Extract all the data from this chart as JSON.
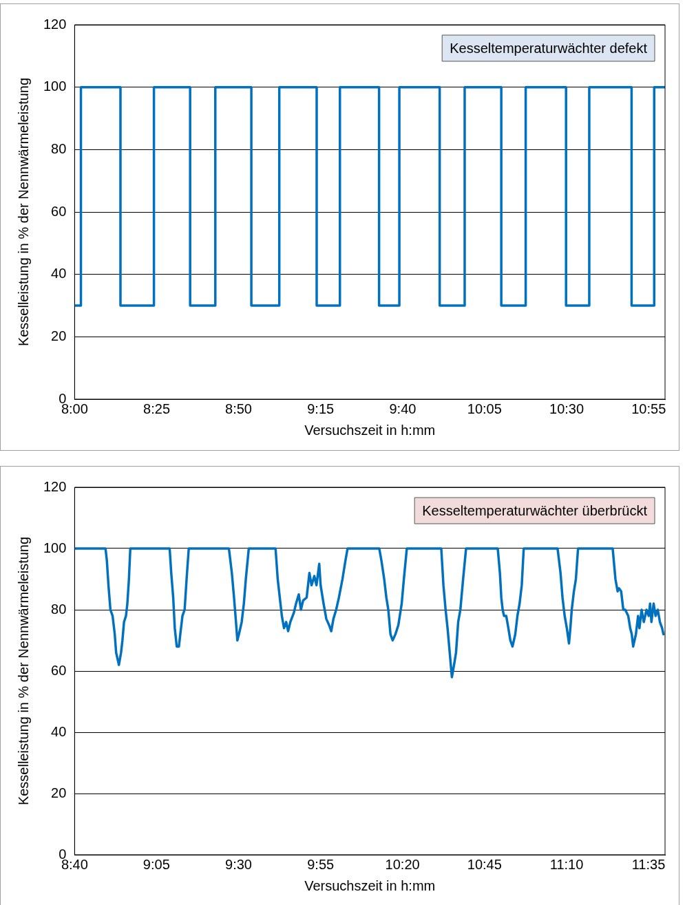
{
  "chart_data": [
    {
      "type": "step",
      "xlabel": "Versuchszeit in h:mm",
      "ylabel": "Kesselleistung in % der Nennwärmeleistung",
      "annotations": [
        "Kesseltemperaturwächter defekt"
      ],
      "xlim": [
        8,
        11
      ],
      "xticks": [
        {
          "value": 8,
          "label": "8:00"
        },
        {
          "value": 8.417,
          "label": "8:25"
        },
        {
          "value": 8.833,
          "label": "8:50"
        },
        {
          "value": 9.25,
          "label": "9:15"
        },
        {
          "value": 9.667,
          "label": "9:40"
        },
        {
          "value": 10.083,
          "label": "10:05"
        },
        {
          "value": 10.5,
          "label": "10:30"
        },
        {
          "value": 10.917,
          "label": "10:55"
        }
      ],
      "ylim": [
        0,
        120
      ],
      "yticks": [
        0,
        20,
        40,
        60,
        80,
        100,
        120
      ],
      "grid": "y",
      "marker": "none",
      "line_style": "solid",
      "x": [
        8,
        8.032,
        8.233,
        8.403,
        8.587,
        8.715,
        8.898,
        9.04,
        9.23,
        9.348,
        9.547,
        9.65,
        9.855,
        9.982,
        10.168,
        10.292,
        10.497,
        10.615,
        10.83,
        10.945,
        11
      ],
      "series": [
        {
          "color": "#0070c0",
          "values": [
            30,
            100,
            30,
            100,
            30,
            100,
            30,
            100,
            30,
            100,
            30,
            100,
            30,
            100,
            30,
            100,
            30,
            100,
            30,
            100,
            100
          ]
        }
      ]
    },
    {
      "type": "line",
      "xlabel": "Versuchszeit in h:mm",
      "ylabel": "Kesselleistung in % der Nennwärmeleistung",
      "annotations": [
        "Kesseltemperaturwächter überbrückt"
      ],
      "xlim": [
        8.667,
        11.667
      ],
      "xticks": [
        {
          "value": 8.667,
          "label": "8:40"
        },
        {
          "value": 9.083,
          "label": "9:05"
        },
        {
          "value": 9.5,
          "label": "9:30"
        },
        {
          "value": 9.917,
          "label": "9:55"
        },
        {
          "value": 10.333,
          "label": "10:20"
        },
        {
          "value": 10.75,
          "label": "10:45"
        },
        {
          "value": 11.167,
          "label": "11:10"
        },
        {
          "value": 11.583,
          "label": "11:35"
        }
      ],
      "ylim": [
        0,
        120
      ],
      "yticks": [
        0,
        20,
        40,
        60,
        80,
        100,
        120
      ],
      "grid": "y",
      "marker": "none",
      "line_style": "solid",
      "x": [
        8.667,
        8.824,
        8.831,
        8.839,
        8.849,
        8.86,
        8.871,
        8.878,
        8.885,
        8.892,
        8.903,
        8.91,
        8.918,
        8.928,
        8.935,
        8.943,
        8.95,
        9.15,
        9.158,
        9.168,
        9.176,
        9.186,
        9.197,
        9.204,
        9.215,
        9.226,
        9.236,
        9.247,
        9.451,
        9.466,
        9.477,
        9.487,
        9.494,
        9.502,
        9.516,
        9.527,
        9.537,
        9.552,
        9.688,
        9.699,
        9.713,
        9.72,
        9.731,
        9.742,
        9.752,
        9.763,
        9.781,
        9.792,
        9.806,
        9.817,
        9.828,
        9.846,
        9.86,
        9.871,
        9.885,
        9.896,
        9.91,
        9.917,
        9.932,
        9.946,
        9.96,
        9.971,
        9.982,
        9.996,
        10.01,
        10.028,
        10.043,
        10.054,
        10.215,
        10.226,
        10.24,
        10.251,
        10.261,
        10.272,
        10.283,
        10.297,
        10.312,
        10.329,
        10.34,
        10.355,
        10.53,
        10.541,
        10.552,
        10.562,
        10.573,
        10.584,
        10.595,
        10.605,
        10.616,
        10.627,
        10.641,
        10.656,
        10.817,
        10.828,
        10.835,
        10.842,
        10.849,
        10.86,
        10.871,
        10.881,
        10.892,
        10.899,
        10.906,
        10.917,
        10.928,
        10.939,
        10.949,
        11.121,
        11.136,
        11.146,
        11.157,
        11.168,
        11.179,
        11.186,
        11.193,
        11.204,
        11.214,
        11.225,
        11.401,
        11.415,
        11.426,
        11.433,
        11.444,
        11.455,
        11.465,
        11.48,
        11.49,
        11.498,
        11.505,
        11.519,
        11.53,
        11.537,
        11.548,
        11.559,
        11.573,
        11.584,
        11.591,
        11.598,
        11.609,
        11.619,
        11.63,
        11.641,
        11.652,
        11.659
      ],
      "series": [
        {
          "color": "#0070c0",
          "values": [
            100,
            100,
            96,
            88,
            80,
            78,
            72,
            66,
            64,
            62,
            66,
            70,
            76,
            78,
            82,
            90,
            100,
            100,
            92,
            84,
            74,
            68,
            68,
            72,
            78,
            80,
            90,
            100,
            100,
            92,
            84,
            76,
            70,
            72,
            76,
            82,
            90,
            100,
            100,
            90,
            82,
            78,
            74,
            76,
            73,
            76,
            79,
            82,
            85,
            80,
            83,
            84,
            92,
            88,
            91,
            88,
            95,
            88,
            82,
            77,
            75,
            73,
            77,
            80,
            84,
            90,
            96,
            100,
            100,
            96,
            90,
            84,
            80,
            72,
            70,
            72,
            75,
            82,
            90,
            100,
            100,
            88,
            80,
            74,
            66,
            58,
            62,
            66,
            76,
            80,
            90,
            100,
            100,
            92,
            84,
            80,
            78,
            78,
            74,
            70,
            68,
            70,
            72,
            78,
            82,
            88,
            100,
            100,
            92,
            84,
            78,
            74,
            69,
            74,
            80,
            86,
            90,
            100,
            100,
            90,
            86,
            87,
            86,
            80,
            80,
            78,
            74,
            72,
            68,
            72,
            78,
            74,
            80,
            76,
            80,
            78,
            82,
            76,
            82,
            78,
            80,
            76,
            74,
            72
          ]
        }
      ]
    }
  ]
}
